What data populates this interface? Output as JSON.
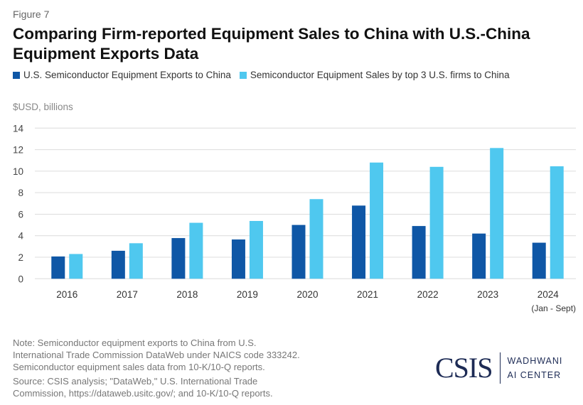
{
  "figure_label": "Figure 7",
  "chart_data": {
    "type": "bar",
    "title": "Comparing Firm-reported Equipment Sales to China with U.S.-China Equipment Exports Data",
    "ylabel": "$USD, billions",
    "xlabel": "",
    "ylim": [
      0,
      14
    ],
    "yticks": [
      "0",
      "2",
      "4",
      "6",
      "8",
      "10",
      "12",
      "14"
    ],
    "grid": true,
    "legend_position": "top-left",
    "categories": [
      "2016",
      "2017",
      "2018",
      "2019",
      "2020",
      "2021",
      "2022",
      "2023",
      "2024"
    ],
    "category_sublabels": [
      "",
      "",
      "",
      "",
      "",
      "",
      "",
      "",
      "(Jan - Sept)"
    ],
    "series": [
      {
        "name": "U.S. Semiconductor Equipment Exports to China",
        "color": "#0f57a6",
        "values": [
          2.07,
          2.6,
          3.78,
          3.65,
          5.0,
          6.8,
          4.9,
          4.2,
          3.35
        ]
      },
      {
        "name": "Semiconductor Equipment Sales by top 3 U.S. firms to China",
        "color": "#4fc8ef",
        "values": [
          2.3,
          3.3,
          5.2,
          5.37,
          7.4,
          10.8,
          10.4,
          12.15,
          10.45
        ]
      }
    ]
  },
  "notes": [
    "Note: Semiconductor equipment exports to China from U.S.",
    "International Trade Commission DataWeb under NAICS code 333242.",
    "Semiconductor equipment sales data from 10-K/10-Q reports.",
    "Source: CSIS analysis; \"DataWeb,\" U.S. International Trade",
    "Commission, https://dataweb.usitc.gov/; and 10-K/10-Q reports."
  ],
  "logo": {
    "main": "CSIS",
    "line1": "WADHWANI",
    "line2": "AI CENTER"
  }
}
